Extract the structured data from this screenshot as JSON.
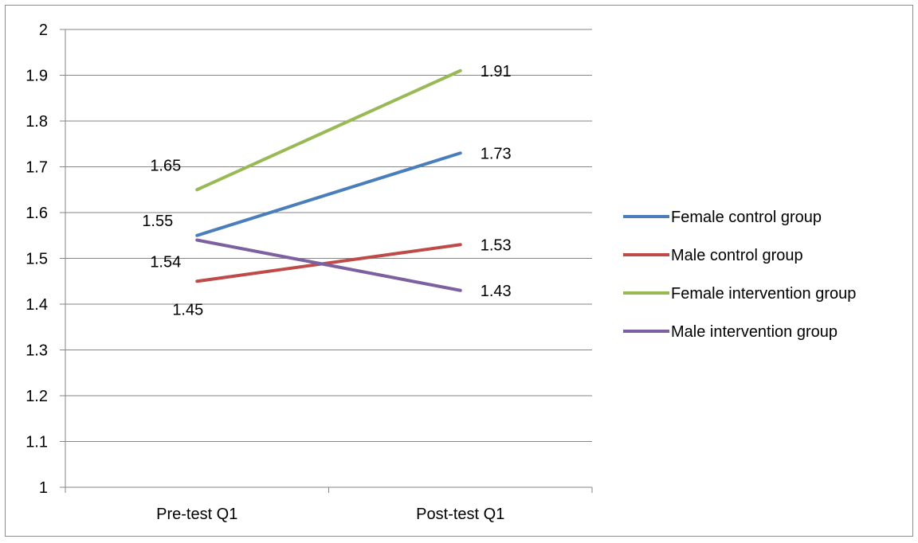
{
  "chart_data": {
    "type": "line",
    "title": "",
    "xlabel": "",
    "ylabel": "",
    "categories": [
      "Pre-test Q1",
      "Post-test Q1"
    ],
    "ylim": [
      1,
      2
    ],
    "y_ticks": [
      "1",
      "1.1",
      "1.2",
      "1.3",
      "1.4",
      "1.5",
      "1.6",
      "1.7",
      "1.8",
      "1.9",
      "2"
    ],
    "grid": true,
    "legend_position": "right",
    "series": [
      {
        "name": "Female control group",
        "color": "#4a7ebb",
        "values": [
          1.55,
          1.73
        ],
        "labels": [
          "1.55",
          "1.73"
        ]
      },
      {
        "name": "Male control group",
        "color": "#be4b48",
        "values": [
          1.45,
          1.53
        ],
        "labels": [
          "1.45",
          "1.53"
        ]
      },
      {
        "name": "Female intervention group",
        "color": "#98b954",
        "values": [
          1.65,
          1.91
        ],
        "labels": [
          "1.65",
          "1.91"
        ]
      },
      {
        "name": "Male intervention group",
        "color": "#7d60a0",
        "values": [
          1.54,
          1.43
        ],
        "labels": [
          "1.54",
          "1.43"
        ]
      }
    ]
  }
}
